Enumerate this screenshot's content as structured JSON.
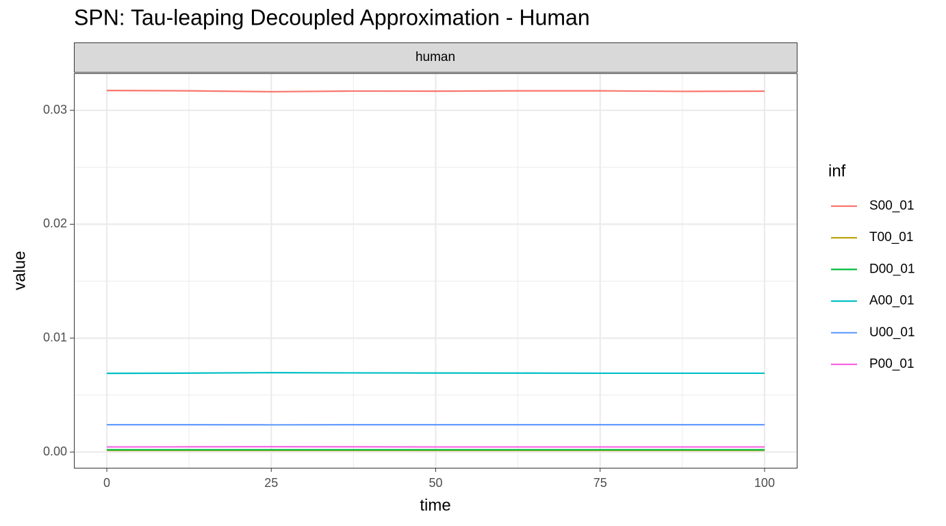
{
  "chart_data": {
    "type": "line",
    "title": "SPN: Tau-leaping Decoupled Approximation - Human",
    "facet": "human",
    "x_label": "time",
    "y_label": "value",
    "legend_title": "inf",
    "x": [
      0,
      12.5,
      25,
      37.5,
      50,
      62.5,
      75,
      87.5,
      100
    ],
    "series": [
      {
        "name": "S00_01",
        "color": "#F8766D",
        "values": [
          0.03174,
          0.03171,
          0.03163,
          0.03169,
          0.03168,
          0.03171,
          0.03171,
          0.03166,
          0.03168
        ]
      },
      {
        "name": "T00_01",
        "color": "#B79F00",
        "values": [
          0.00015,
          0.00015,
          0.00015,
          0.00015,
          0.00015,
          0.00015,
          0.00015,
          0.00015,
          0.00015
        ]
      },
      {
        "name": "D00_01",
        "color": "#00BA38",
        "values": [
          0.0002,
          0.0002,
          0.0002,
          0.0002,
          0.0002,
          0.0002,
          0.0002,
          0.0002,
          0.0002
        ]
      },
      {
        "name": "A00_01",
        "color": "#00BFC4",
        "values": [
          0.00691,
          0.00693,
          0.00697,
          0.00695,
          0.00694,
          0.00693,
          0.00692,
          0.00692,
          0.00692
        ]
      },
      {
        "name": "U00_01",
        "color": "#619CFF",
        "values": [
          0.0024,
          0.0024,
          0.00239,
          0.0024,
          0.0024,
          0.0024,
          0.0024,
          0.0024,
          0.0024
        ]
      },
      {
        "name": "P00_01",
        "color": "#F564E3",
        "values": [
          0.00045,
          0.00046,
          0.00047,
          0.00046,
          0.00045,
          0.00045,
          0.00045,
          0.00045,
          0.00045
        ]
      }
    ],
    "xlim": [
      -5,
      105
    ],
    "xticks": [
      0,
      25,
      50,
      75,
      100
    ],
    "ylim": [
      -0.00138,
      0.03325
    ],
    "yticks": [
      {
        "value": 0,
        "label": "0.00"
      },
      {
        "value": 0.01,
        "label": "0.01"
      },
      {
        "value": 0.02,
        "label": "0.02"
      },
      {
        "value": 0.03,
        "label": "0.03"
      }
    ],
    "grid": true,
    "legend_position": "right"
  }
}
